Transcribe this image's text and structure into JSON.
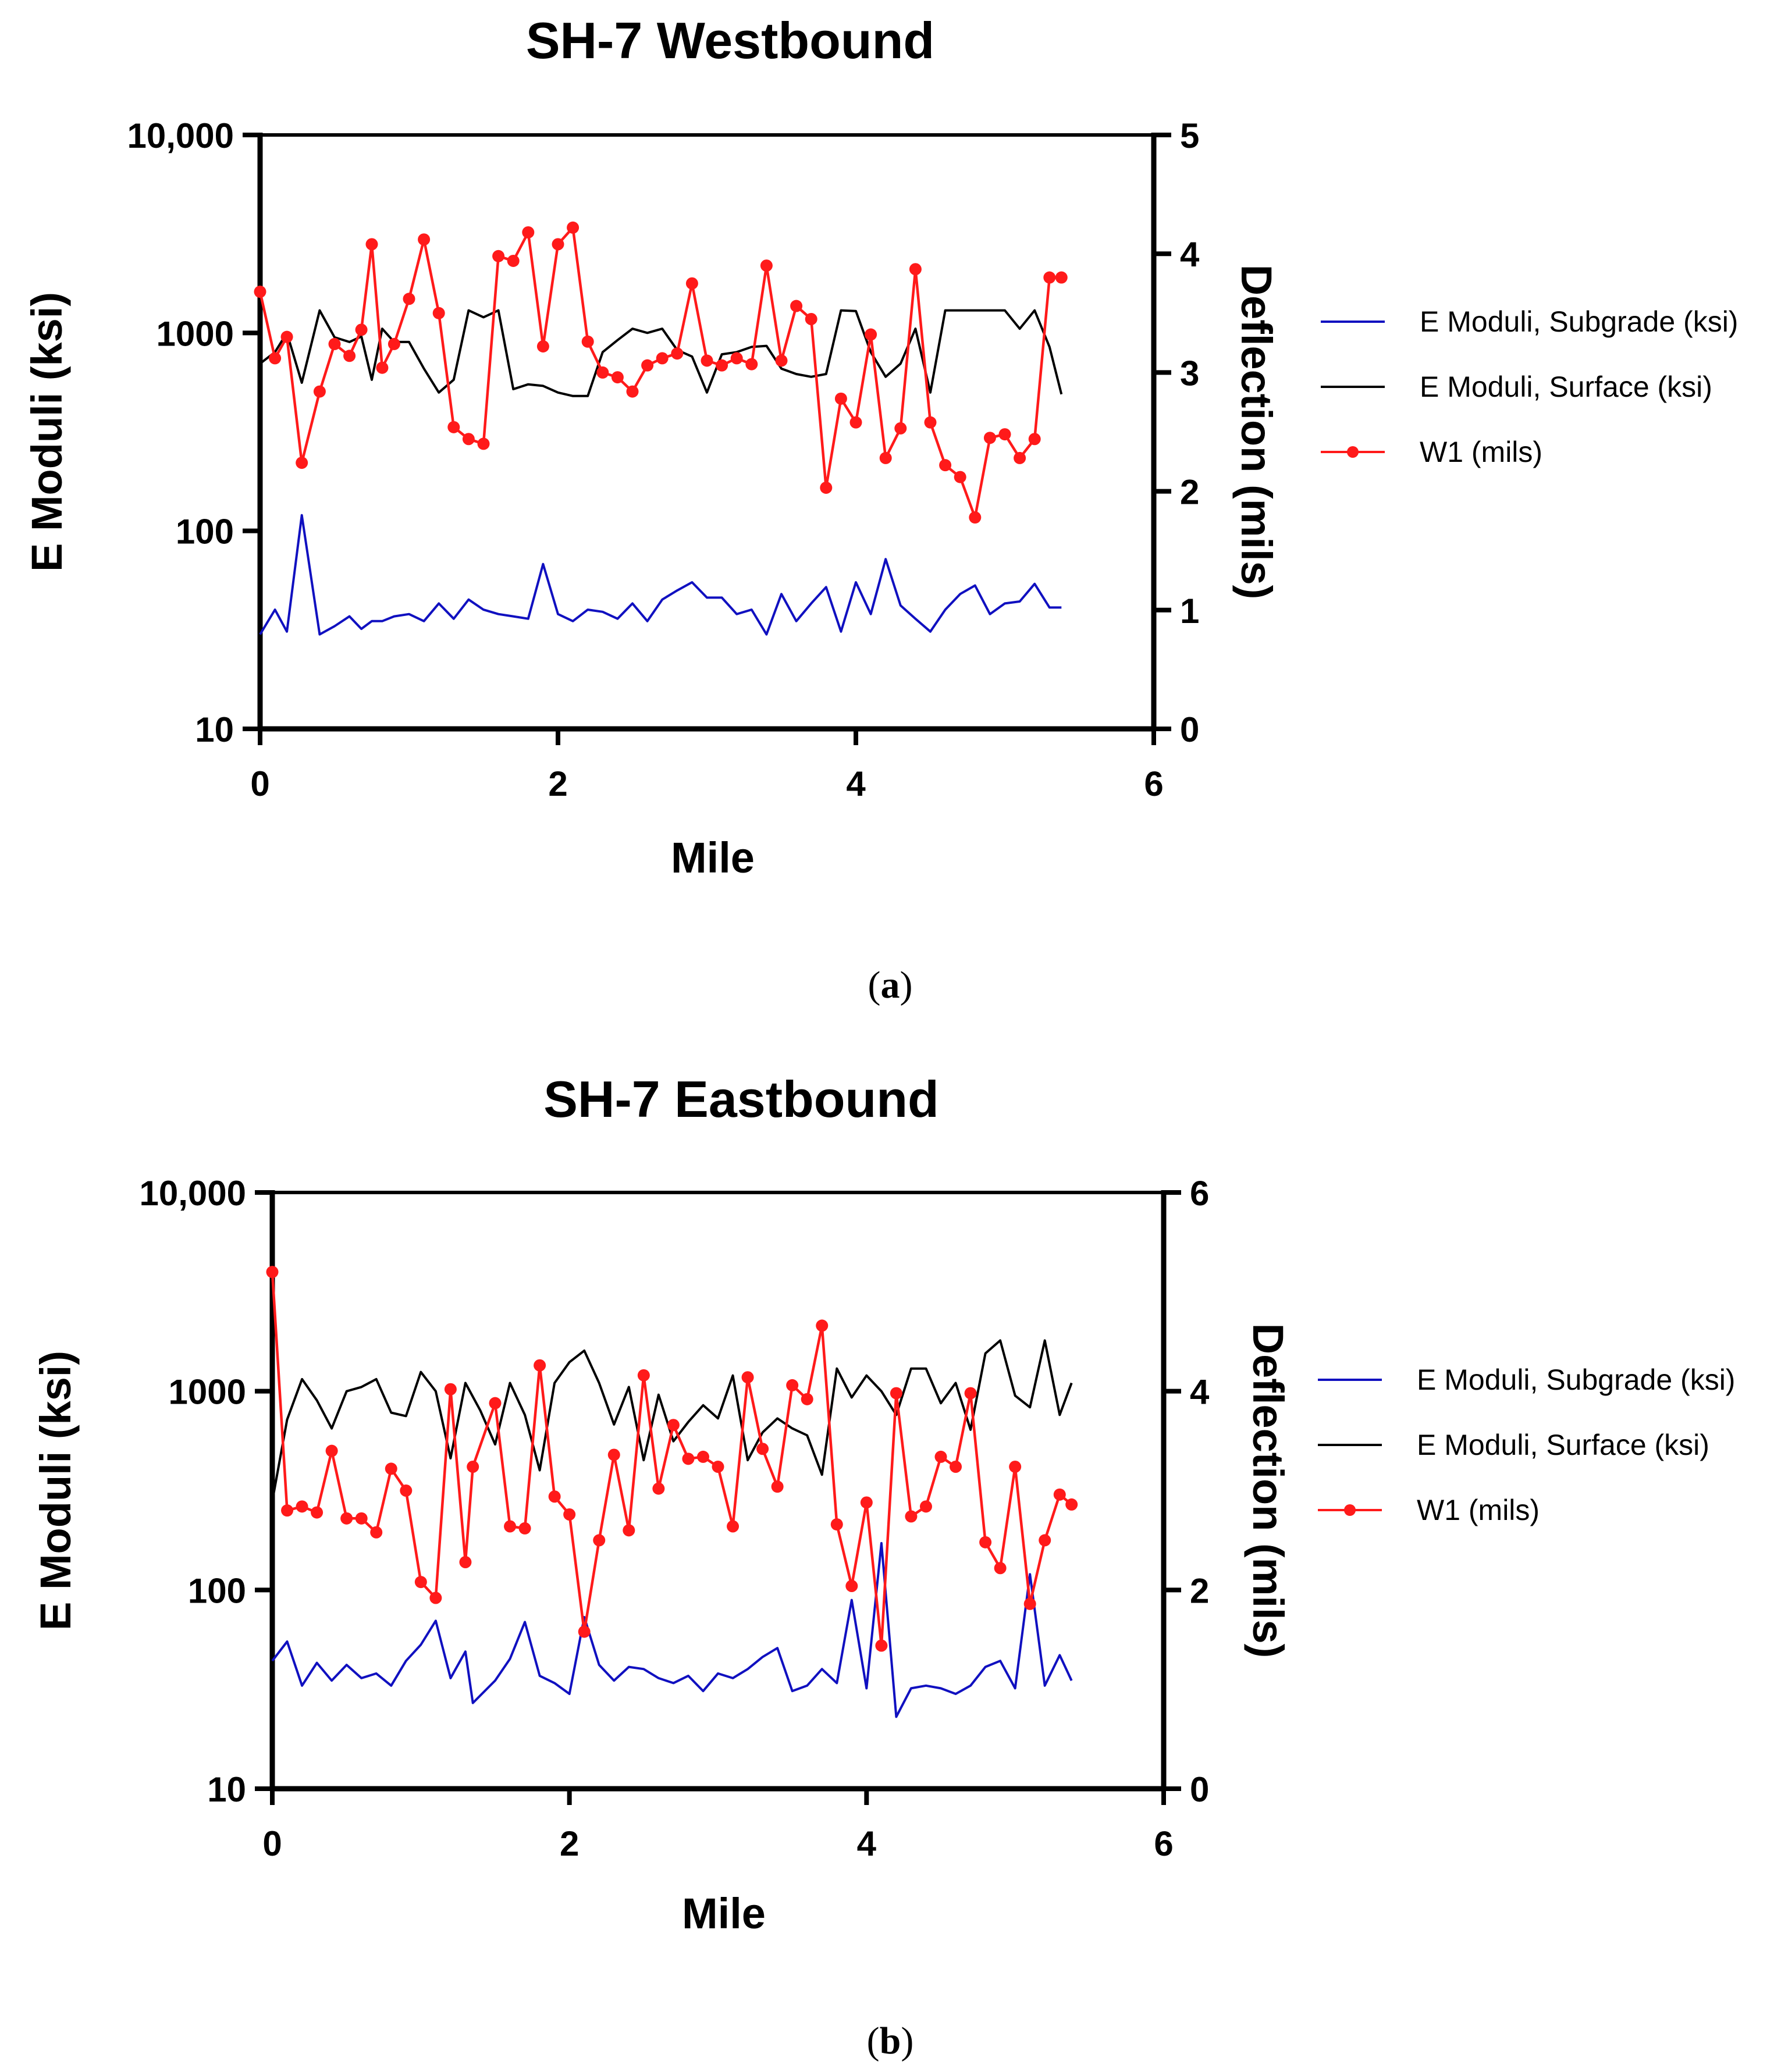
{
  "colors": {
    "subgrade": "#1010c0",
    "surface": "#000000",
    "w1": "#ff1a1a"
  },
  "chart_data": [
    {
      "type": "line",
      "panel_label": "a",
      "title": "SH-7 Westbound",
      "xlabel": "Mile",
      "ylabel_left": "E Moduli (ksi)",
      "ylabel_right": "Deflection (mils)",
      "xlim": [
        0,
        6
      ],
      "x_ticks": [
        "0",
        "2",
        "4",
        "6"
      ],
      "y_left_scale": "log",
      "y_left_lim": [
        10,
        10000
      ],
      "y_left_ticks": [
        "10",
        "100",
        "1000",
        "10,000"
      ],
      "y_right_lim": [
        0,
        5
      ],
      "y_right_ticks": [
        "0",
        "1",
        "2",
        "3",
        "4",
        "5"
      ],
      "legend_position": "right",
      "series": [
        {
          "name": "E Moduli, Subgrade (ksi)",
          "axis": "left",
          "marker": false,
          "x": [
            0,
            0.1,
            0.18,
            0.28,
            0.4,
            0.5,
            0.6,
            0.68,
            0.75,
            0.82,
            0.9,
            1.0,
            1.1,
            1.2,
            1.3,
            1.4,
            1.5,
            1.6,
            1.7,
            1.8,
            1.9,
            2.0,
            2.1,
            2.2,
            2.3,
            2.4,
            2.5,
            2.6,
            2.7,
            2.8,
            2.9,
            3.0,
            3.1,
            3.2,
            3.3,
            3.4,
            3.5,
            3.6,
            3.7,
            3.8,
            3.9,
            4.0,
            4.1,
            4.2,
            4.3,
            4.4,
            4.5,
            4.6,
            4.7,
            4.8,
            4.9,
            5.0,
            5.1,
            5.2,
            5.3,
            5.38
          ],
          "values": [
            30,
            40,
            31,
            120,
            30,
            33,
            37,
            32,
            35,
            35,
            37,
            38,
            35,
            43,
            36,
            45,
            40,
            38,
            37,
            36,
            68,
            38,
            35,
            40,
            39,
            36,
            43,
            35,
            45,
            50,
            55,
            46,
            46,
            38,
            40,
            30,
            48,
            35,
            43,
            52,
            31,
            55,
            38,
            72,
            42,
            36,
            31,
            40,
            48,
            53,
            38,
            43,
            44,
            54,
            41,
            41
          ]
        },
        {
          "name": "E Moduli, Surface (ksi)",
          "axis": "left",
          "marker": false,
          "x": [
            0,
            0.1,
            0.18,
            0.28,
            0.4,
            0.5,
            0.6,
            0.68,
            0.75,
            0.82,
            0.9,
            1.0,
            1.1,
            1.2,
            1.3,
            1.4,
            1.5,
            1.6,
            1.7,
            1.8,
            1.9,
            2.0,
            2.1,
            2.2,
            2.3,
            2.4,
            2.5,
            2.6,
            2.7,
            2.8,
            2.9,
            3.0,
            3.1,
            3.2,
            3.3,
            3.4,
            3.5,
            3.6,
            3.7,
            3.8,
            3.9,
            4.0,
            4.1,
            4.2,
            4.3,
            4.4,
            4.5,
            4.6,
            4.7,
            4.8,
            4.9,
            5.0,
            5.1,
            5.2,
            5.3,
            5.38
          ],
          "values": [
            700,
            800,
            1000,
            560,
            1300,
            950,
            900,
            960,
            580,
            1050,
            900,
            900,
            660,
            500,
            580,
            1300,
            1200,
            1300,
            520,
            550,
            540,
            500,
            480,
            480,
            800,
            920,
            1050,
            1000,
            1050,
            820,
            760,
            500,
            780,
            800,
            850,
            860,
            660,
            620,
            600,
            620,
            1300,
            1290,
            800,
            600,
            700,
            1050,
            500,
            1300,
            1300,
            1300,
            1300,
            1300,
            1050,
            1300,
            850,
            490
          ]
        },
        {
          "name": "W1 (mils)",
          "axis": "right",
          "marker": true,
          "x": [
            0,
            0.1,
            0.18,
            0.28,
            0.4,
            0.5,
            0.6,
            0.68,
            0.75,
            0.82,
            0.9,
            1.0,
            1.1,
            1.2,
            1.3,
            1.4,
            1.5,
            1.6,
            1.7,
            1.8,
            1.9,
            2.0,
            2.1,
            2.2,
            2.3,
            2.4,
            2.5,
            2.6,
            2.7,
            2.8,
            2.9,
            3.0,
            3.1,
            3.2,
            3.3,
            3.4,
            3.5,
            3.6,
            3.7,
            3.8,
            3.9,
            4.0,
            4.1,
            4.2,
            4.3,
            4.4,
            4.5,
            4.6,
            4.7,
            4.8,
            4.9,
            5.0,
            5.1,
            5.2,
            5.3,
            5.38
          ],
          "values": [
            3.68,
            3.12,
            3.3,
            2.24,
            2.84,
            3.24,
            3.14,
            3.36,
            4.08,
            3.04,
            3.24,
            3.62,
            4.12,
            3.5,
            2.54,
            2.44,
            2.4,
            3.98,
            3.94,
            4.18,
            3.22,
            4.08,
            4.22,
            3.26,
            3.0,
            2.96,
            2.84,
            3.06,
            3.12,
            3.16,
            3.75,
            3.1,
            3.06,
            3.12,
            3.07,
            3.9,
            3.1,
            3.56,
            3.45,
            2.03,
            2.78,
            2.58,
            3.32,
            2.28,
            2.53,
            3.87,
            2.58,
            2.22,
            2.12,
            1.78,
            2.45,
            2.48,
            2.28,
            2.44,
            3.8,
            3.8
          ]
        }
      ]
    },
    {
      "type": "line",
      "panel_label": "b",
      "title": "SH-7 Eastbound",
      "xlabel": "Mile",
      "ylabel_left": "E Moduli (ksi)",
      "ylabel_right": "Deflection (mils)",
      "xlim": [
        0,
        6
      ],
      "x_ticks": [
        "0",
        "2",
        "4",
        "6"
      ],
      "y_left_scale": "log",
      "y_left_lim": [
        10,
        10000
      ],
      "y_left_ticks": [
        "10",
        "100",
        "1000",
        "10,000"
      ],
      "y_right_lim": [
        0,
        6
      ],
      "y_right_ticks": [
        "0",
        "2",
        "4",
        "6"
      ],
      "legend_position": "right",
      "series": [
        {
          "name": "E Moduli, Subgrade (ksi)",
          "axis": "left",
          "marker": false,
          "x": [
            0,
            0.1,
            0.2,
            0.3,
            0.4,
            0.5,
            0.6,
            0.7,
            0.8,
            0.9,
            1.0,
            1.1,
            1.2,
            1.3,
            1.35,
            1.5,
            1.6,
            1.7,
            1.8,
            1.9,
            2.0,
            2.1,
            2.2,
            2.3,
            2.4,
            2.5,
            2.6,
            2.7,
            2.8,
            2.9,
            3.0,
            3.1,
            3.2,
            3.3,
            3.4,
            3.5,
            3.6,
            3.7,
            3.8,
            3.9,
            4.0,
            4.1,
            4.2,
            4.3,
            4.4,
            4.5,
            4.6,
            4.7,
            4.8,
            4.9,
            5.0,
            5.1,
            5.2,
            5.3,
            5.38
          ],
          "values": [
            44,
            55,
            33,
            43,
            35,
            42,
            36,
            38,
            33,
            44,
            53,
            70,
            36,
            49,
            27,
            35,
            45,
            69,
            37,
            34,
            30,
            73,
            42,
            35,
            41,
            40,
            36,
            34,
            37,
            31,
            38,
            36,
            40,
            46,
            51,
            31,
            33,
            40,
            34,
            89,
            32,
            172,
            23,
            32,
            33,
            32,
            30,
            33,
            41,
            44,
            32,
            120,
            33,
            47,
            35
          ]
        },
        {
          "name": "E Moduli, Surface (ksi)",
          "axis": "left",
          "marker": false,
          "x": [
            0,
            0.1,
            0.2,
            0.3,
            0.4,
            0.5,
            0.6,
            0.7,
            0.8,
            0.9,
            1.0,
            1.1,
            1.2,
            1.3,
            1.4,
            1.5,
            1.6,
            1.7,
            1.8,
            1.9,
            2.0,
            2.1,
            2.2,
            2.3,
            2.4,
            2.5,
            2.6,
            2.7,
            2.8,
            2.9,
            3.0,
            3.1,
            3.2,
            3.3,
            3.4,
            3.5,
            3.6,
            3.7,
            3.8,
            3.9,
            4.0,
            4.1,
            4.2,
            4.3,
            4.4,
            4.5,
            4.6,
            4.7,
            4.8,
            4.9,
            5.0,
            5.1,
            5.2,
            5.3,
            5.38
          ],
          "values": [
            280,
            720,
            1150,
            900,
            650,
            1000,
            1050,
            1150,
            780,
            750,
            1250,
            1000,
            460,
            1100,
            800,
            540,
            1100,
            760,
            400,
            1100,
            1400,
            1600,
            1100,
            680,
            1050,
            450,
            960,
            560,
            700,
            850,
            730,
            1200,
            450,
            620,
            730,
            650,
            600,
            380,
            1300,
            930,
            1200,
            1000,
            760,
            1300,
            1300,
            870,
            1100,
            640,
            1550,
            1800,
            950,
            830,
            1800,
            760,
            1100
          ]
        },
        {
          "name": "W1 (mils)",
          "axis": "right",
          "marker": true,
          "x": [
            0,
            0.1,
            0.2,
            0.3,
            0.4,
            0.5,
            0.6,
            0.7,
            0.8,
            0.9,
            1.0,
            1.1,
            1.2,
            1.3,
            1.35,
            1.5,
            1.6,
            1.7,
            1.8,
            1.9,
            2.0,
            2.1,
            2.2,
            2.3,
            2.4,
            2.5,
            2.6,
            2.7,
            2.8,
            2.9,
            3.0,
            3.1,
            3.2,
            3.3,
            3.4,
            3.5,
            3.6,
            3.7,
            3.8,
            3.9,
            4.0,
            4.1,
            4.2,
            4.3,
            4.4,
            4.5,
            4.6,
            4.7,
            4.8,
            4.9,
            5.0,
            5.1,
            5.2,
            5.3,
            5.38
          ],
          "values": [
            5.2,
            2.8,
            2.84,
            2.78,
            3.4,
            2.72,
            2.72,
            2.58,
            3.22,
            3.0,
            2.08,
            1.92,
            4.02,
            2.28,
            3.24,
            3.88,
            2.64,
            2.62,
            4.26,
            2.94,
            2.76,
            1.58,
            2.5,
            3.36,
            2.6,
            4.16,
            3.02,
            3.66,
            3.32,
            3.34,
            3.24,
            2.64,
            4.14,
            3.42,
            3.04,
            4.06,
            3.92,
            4.66,
            2.66,
            2.04,
            2.88,
            1.44,
            3.98,
            2.74,
            2.84,
            3.34,
            3.24,
            3.98,
            2.48,
            2.22,
            3.24,
            1.86,
            2.5,
            2.96,
            2.86
          ]
        }
      ]
    }
  ]
}
